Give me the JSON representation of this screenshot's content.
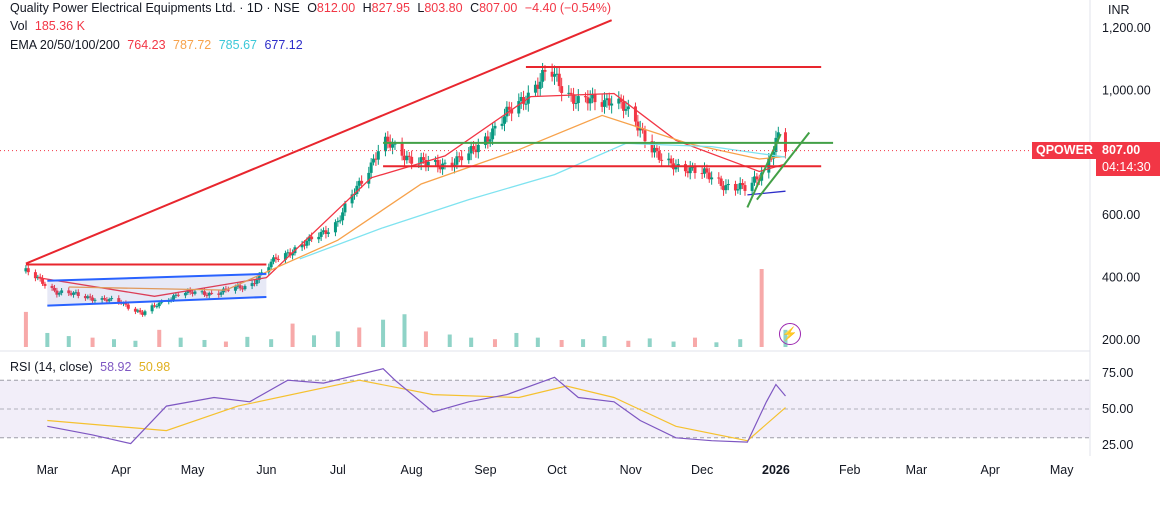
{
  "header": {
    "title": "Quality Power Electrical Equipments Ltd. · 1D · NSE",
    "open_label": "O",
    "open": "812.00",
    "high_label": "H",
    "high": "827.95",
    "low_label": "L",
    "low": "803.80",
    "close_label": "C",
    "close": "807.00",
    "change": "−4.40 (−0.54%)"
  },
  "volume": {
    "label": "Vol",
    "value": "185.36 K"
  },
  "ema": {
    "label": "EMA 20/50/100/200",
    "v20": "764.23",
    "v50": "787.72",
    "v100": "785.67",
    "v200": "677.12"
  },
  "rsi": {
    "label": "RSI (14, close)",
    "value": "58.92",
    "ma": "50.98"
  },
  "currency": "INR",
  "symbol_badge": "QPOWER",
  "price_badge": "807.00",
  "countdown": "04:14:30",
  "colors": {
    "up": "#089981",
    "down": "#f23645",
    "ema20": "#f23645",
    "ema50": "#f7a24b",
    "ema100": "#7fe3f0",
    "ema200": "#2d2dc9",
    "rsi": "#7e57c2",
    "rsi_ma": "#f5c12f",
    "trendline_red": "#e8262e",
    "trendline_blue": "#2962ff",
    "trendline_green": "#43a047"
  },
  "icons": {
    "flash": "flash-icon"
  },
  "chart_data": {
    "type": "candlestick",
    "price_axis_ticks": [
      "1,200.00",
      "1,000.00",
      "800.00",
      "600.00",
      "400.00",
      "200.00"
    ],
    "rsi_axis_ticks": [
      "75.00",
      "50.00",
      "25.00"
    ],
    "time_labels": [
      "Mar",
      "Apr",
      "May",
      "Jun",
      "Jul",
      "Aug",
      "Sep",
      "Oct",
      "Nov",
      "Dec",
      "2026",
      "Feb",
      "Mar",
      "Apr",
      "May"
    ],
    "ylim": [
      200,
      1220
    ],
    "rsi_ylim": [
      20,
      80
    ],
    "close_series": [
      [
        "2025-02-20",
        420
      ],
      [
        "2025-03-05",
        355
      ],
      [
        "2025-03-20",
        335
      ],
      [
        "2025-04-01",
        320
      ],
      [
        "2025-04-10",
        285
      ],
      [
        "2025-04-25",
        350
      ],
      [
        "2025-05-10",
        350
      ],
      [
        "2025-05-25",
        375
      ],
      [
        "2025-06-05",
        460
      ],
      [
        "2025-06-20",
        520
      ],
      [
        "2025-07-01",
        580
      ],
      [
        "2025-07-10",
        700
      ],
      [
        "2025-07-20",
        835
      ],
      [
        "2025-07-30",
        790
      ],
      [
        "2025-08-10",
        755
      ],
      [
        "2025-08-25",
        790
      ],
      [
        "2025-09-05",
        880
      ],
      [
        "2025-09-15",
        960
      ],
      [
        "2025-09-28",
        1060
      ],
      [
        "2025-10-10",
        960
      ],
      [
        "2025-10-25",
        975
      ],
      [
        "2025-11-05",
        880
      ],
      [
        "2025-11-15",
        760
      ],
      [
        "2025-11-25",
        755
      ],
      [
        "2025-12-10",
        700
      ],
      [
        "2025-12-20",
        680
      ],
      [
        "2025-12-28",
        760
      ],
      [
        "2026-01-02",
        850
      ],
      [
        "2026-01-05",
        807
      ]
    ],
    "ema20": [
      [
        "2025-02-25",
        400
      ],
      [
        "2025-04-15",
        340
      ],
      [
        "2025-06-01",
        400
      ],
      [
        "2025-07-15",
        720
      ],
      [
        "2025-08-15",
        790
      ],
      [
        "2025-09-20",
        980
      ],
      [
        "2025-10-25",
        990
      ],
      [
        "2025-11-20",
        840
      ],
      [
        "2025-12-25",
        740
      ],
      [
        "2026-01-05",
        764
      ]
    ],
    "ema50": [
      [
        "2025-03-10",
        370
      ],
      [
        "2025-05-15",
        360
      ],
      [
        "2025-07-01",
        520
      ],
      [
        "2025-08-05",
        700
      ],
      [
        "2025-09-15",
        810
      ],
      [
        "2025-10-20",
        920
      ],
      [
        "2025-11-25",
        830
      ],
      [
        "2025-12-25",
        780
      ],
      [
        "2026-01-05",
        788
      ]
    ],
    "ema100": [
      [
        "2025-06-15",
        460
      ],
      [
        "2025-07-20",
        560
      ],
      [
        "2025-08-25",
        650
      ],
      [
        "2025-09-30",
        730
      ],
      [
        "2025-10-30",
        830
      ],
      [
        "2025-12-05",
        820
      ],
      [
        "2026-01-05",
        786
      ]
    ],
    "ema200": [
      [
        "2025-12-20",
        665
      ],
      [
        "2026-01-05",
        677
      ]
    ],
    "volume_bars": [
      0.45,
      0.18,
      0.14,
      0.12,
      0.1,
      0.08,
      0.22,
      0.12,
      0.09,
      0.07,
      0.13,
      0.1,
      0.3,
      0.15,
      0.2,
      0.25,
      0.35,
      0.42,
      0.2,
      0.16,
      0.12,
      0.1,
      0.18,
      0.12,
      0.09,
      0.1,
      0.14,
      0.08,
      0.11,
      0.07,
      0.12,
      0.06,
      0.1,
      1.0,
      0.22
    ],
    "rsi_series": [
      [
        "2025-03-01",
        38
      ],
      [
        "2025-03-20",
        32
      ],
      [
        "2025-04-05",
        26
      ],
      [
        "2025-04-20",
        52
      ],
      [
        "2025-05-10",
        58
      ],
      [
        "2025-05-25",
        55
      ],
      [
        "2025-06-10",
        70
      ],
      [
        "2025-06-25",
        68
      ],
      [
        "2025-07-20",
        78
      ],
      [
        "2025-07-25",
        70
      ],
      [
        "2025-08-10",
        48
      ],
      [
        "2025-08-25",
        55
      ],
      [
        "2025-09-10",
        60
      ],
      [
        "2025-09-30",
        72
      ],
      [
        "2025-10-10",
        58
      ],
      [
        "2025-10-25",
        55
      ],
      [
        "2025-11-05",
        42
      ],
      [
        "2025-11-20",
        30
      ],
      [
        "2025-12-05",
        28
      ],
      [
        "2025-12-20",
        27
      ],
      [
        "2025-12-28",
        55
      ],
      [
        "2026-01-01",
        67
      ],
      [
        "2026-01-05",
        59
      ]
    ],
    "rsi_ma_series": [
      [
        "2025-03-01",
        42
      ],
      [
        "2025-04-20",
        35
      ],
      [
        "2025-05-20",
        52
      ],
      [
        "2025-07-10",
        70
      ],
      [
        "2025-08-10",
        60
      ],
      [
        "2025-09-15",
        58
      ],
      [
        "2025-10-05",
        66
      ],
      [
        "2025-10-25",
        58
      ],
      [
        "2025-11-20",
        38
      ],
      [
        "2025-12-20",
        28
      ],
      [
        "2026-01-05",
        51
      ]
    ]
  }
}
